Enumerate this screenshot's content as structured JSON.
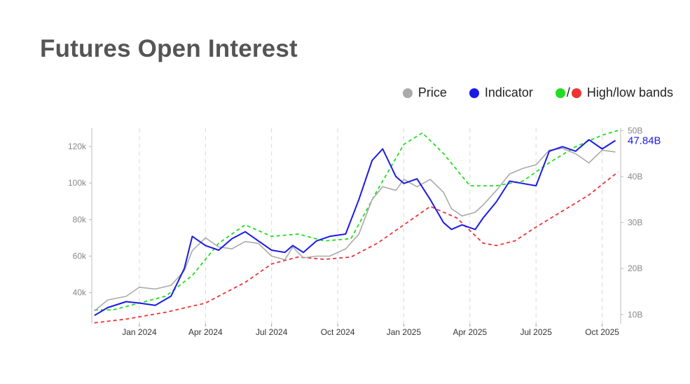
{
  "title": "Futures Open Interest",
  "legend": {
    "price": {
      "label": "Price",
      "color": "#aaaaaa"
    },
    "indicator": {
      "label": "Indicator",
      "color": "#1a1ae6"
    },
    "bands": {
      "label": "High/low bands",
      "slash": "/",
      "high_color": "#22dd22",
      "low_color": "#ee3333"
    }
  },
  "chart_data": {
    "type": "line",
    "title": "Futures Open Interest",
    "x_tick_labels": [
      "Jan 2024",
      "Apr 2024",
      "Jul 2024",
      "Oct 2024",
      "Jan 2025",
      "Apr 2025",
      "Jul 2025",
      "Oct 2025"
    ],
    "x_tick_times": [
      2024.0,
      2024.25,
      2024.5,
      2024.75,
      2025.0,
      2025.25,
      2025.5,
      2025.75
    ],
    "x_range": [
      2023.82,
      2025.82
    ],
    "y_left": {
      "label": "",
      "range": [
        23000,
        130000
      ],
      "ticks": [
        40000,
        60000,
        80000,
        100000,
        120000
      ],
      "tick_labels": [
        "40k",
        "60k",
        "80k",
        "100k",
        "120k"
      ]
    },
    "y_right": {
      "label": "",
      "range": [
        8,
        50.5
      ],
      "ticks": [
        10,
        20,
        30,
        40,
        50
      ],
      "tick_labels": [
        "10B",
        "20B",
        "30B",
        "40B",
        "50B"
      ]
    },
    "last_value_label": "47.84B",
    "series": [
      {
        "name": "Price",
        "axis": "left",
        "color": "#aaaaaa",
        "x": [
          2023.83,
          2023.88,
          2023.95,
          2024.0,
          2024.06,
          2024.12,
          2024.17,
          2024.2,
          2024.25,
          2024.3,
          2024.35,
          2024.4,
          2024.45,
          2024.5,
          2024.55,
          2024.58,
          2024.62,
          2024.67,
          2024.72,
          2024.78,
          2024.83,
          2024.88,
          2024.92,
          2024.97,
          2025.0,
          2025.05,
          2025.1,
          2025.15,
          2025.18,
          2025.22,
          2025.27,
          2025.3,
          2025.35,
          2025.4,
          2025.45,
          2025.5,
          2025.55,
          2025.6,
          2025.65,
          2025.7,
          2025.75,
          2025.8
        ],
        "y": [
          30000,
          36000,
          38000,
          43000,
          42000,
          44000,
          52000,
          63000,
          70000,
          65000,
          64000,
          68000,
          67000,
          60000,
          58000,
          65000,
          59000,
          60000,
          60000,
          64000,
          72000,
          91000,
          98000,
          96000,
          102000,
          98000,
          102000,
          95000,
          86000,
          82000,
          84000,
          88000,
          96000,
          105000,
          108000,
          110000,
          118000,
          119000,
          116000,
          111000,
          118000,
          117000
        ]
      },
      {
        "name": "Indicator",
        "axis": "right",
        "color": "#1a1ae6",
        "x": [
          2023.83,
          2023.88,
          2023.95,
          2024.0,
          2024.06,
          2024.12,
          2024.17,
          2024.2,
          2024.25,
          2024.3,
          2024.35,
          2024.4,
          2024.45,
          2024.5,
          2024.55,
          2024.58,
          2024.62,
          2024.67,
          2024.72,
          2024.78,
          2024.83,
          2024.88,
          2024.92,
          2024.97,
          2025.0,
          2025.05,
          2025.1,
          2025.15,
          2025.18,
          2025.22,
          2025.27,
          2025.3,
          2025.35,
          2025.4,
          2025.45,
          2025.5,
          2025.55,
          2025.6,
          2025.65,
          2025.7,
          2025.75,
          2025.8
        ],
        "y": [
          9.8,
          11.5,
          12.8,
          12.5,
          12.0,
          14.0,
          20.0,
          27.0,
          25.0,
          24.0,
          26.5,
          28.0,
          26.0,
          24.0,
          23.5,
          25.0,
          23.5,
          26.0,
          27.0,
          27.5,
          35.0,
          43.5,
          46.0,
          40.0,
          38.5,
          39.5,
          35.0,
          30.0,
          28.5,
          29.5,
          28.5,
          31.0,
          34.5,
          39.0,
          38.5,
          38.0,
          45.5,
          46.5,
          45.5,
          48.0,
          46.0,
          47.84
        ]
      },
      {
        "name": "High band",
        "axis": "right",
        "color": "#22dd22",
        "x": [
          2023.83,
          2023.9,
          2024.0,
          2024.1,
          2024.2,
          2024.3,
          2024.4,
          2024.5,
          2024.6,
          2024.7,
          2024.8,
          2024.9,
          2025.0,
          2025.07,
          2025.15,
          2025.25,
          2025.35,
          2025.45,
          2025.55,
          2025.65,
          2025.75,
          2025.81
        ],
        "y": [
          11.0,
          11.0,
          12.5,
          14.0,
          18.5,
          25.5,
          29.5,
          27.0,
          27.5,
          26.0,
          26.5,
          37.0,
          47.0,
          49.5,
          45.0,
          38.0,
          38.0,
          39.0,
          43.0,
          46.5,
          49.0,
          50.0
        ]
      },
      {
        "name": "Low band",
        "axis": "right",
        "color": "#ee3333",
        "x": [
          2023.83,
          2023.95,
          2024.1,
          2024.25,
          2024.4,
          2024.5,
          2024.6,
          2024.7,
          2024.8,
          2024.9,
          2025.0,
          2025.1,
          2025.2,
          2025.3,
          2025.35,
          2025.42,
          2025.5,
          2025.6,
          2025.7,
          2025.81
        ],
        "y": [
          8.2,
          9.0,
          10.5,
          12.5,
          17.0,
          21.0,
          22.5,
          22.0,
          22.5,
          25.5,
          29.5,
          33.5,
          31.0,
          25.5,
          25.0,
          26.0,
          29.0,
          32.5,
          36.0,
          41.0
        ]
      }
    ]
  }
}
